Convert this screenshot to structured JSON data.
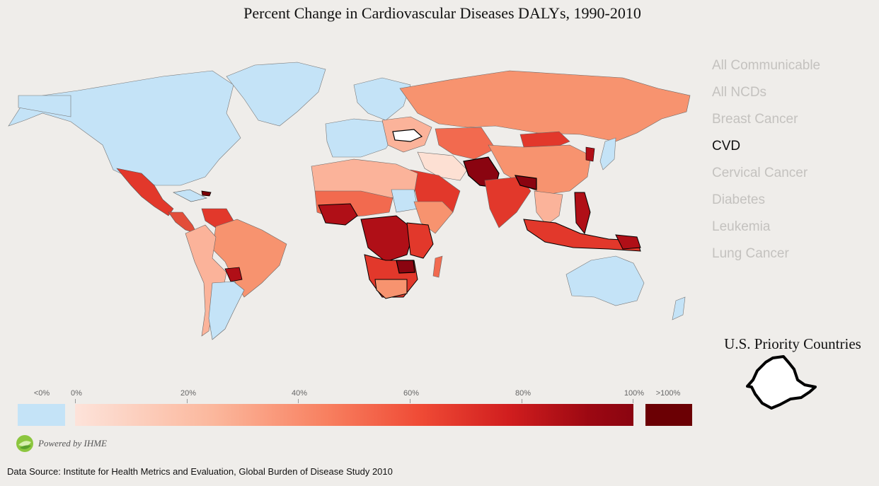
{
  "title": "Percent Change in Cardiovascular Diseases DALYs, 1990-2010",
  "menu": {
    "items": [
      {
        "label": "All Communicable",
        "active": false
      },
      {
        "label": "All NCDs",
        "active": false
      },
      {
        "label": "Breast Cancer",
        "active": false
      },
      {
        "label": "CVD",
        "active": true
      },
      {
        "label": "Cervical Cancer",
        "active": false
      },
      {
        "label": "Diabetes",
        "active": false
      },
      {
        "label": "Leukemia",
        "active": false
      },
      {
        "label": "Lung Cancer",
        "active": false
      }
    ]
  },
  "priority": {
    "title": "U.S. Priority Countries"
  },
  "legend": {
    "neg_label": "<0%",
    "labels": [
      "0%",
      "20%",
      "40%",
      "60%",
      "80%",
      "100%"
    ],
    "over_label": ">100%",
    "colors": {
      "negative": "#c4e3f7",
      "low": "#fde3da",
      "mid": "#f88060",
      "high": "#d01d1e",
      "max": "#8a0410",
      "over": "#6b0004"
    }
  },
  "powered": {
    "text": "Powered by IHME"
  },
  "source": {
    "text": "Data Source: Institute for Health Metrics and Evaluation, Global Burden of Disease Study 2010"
  }
}
